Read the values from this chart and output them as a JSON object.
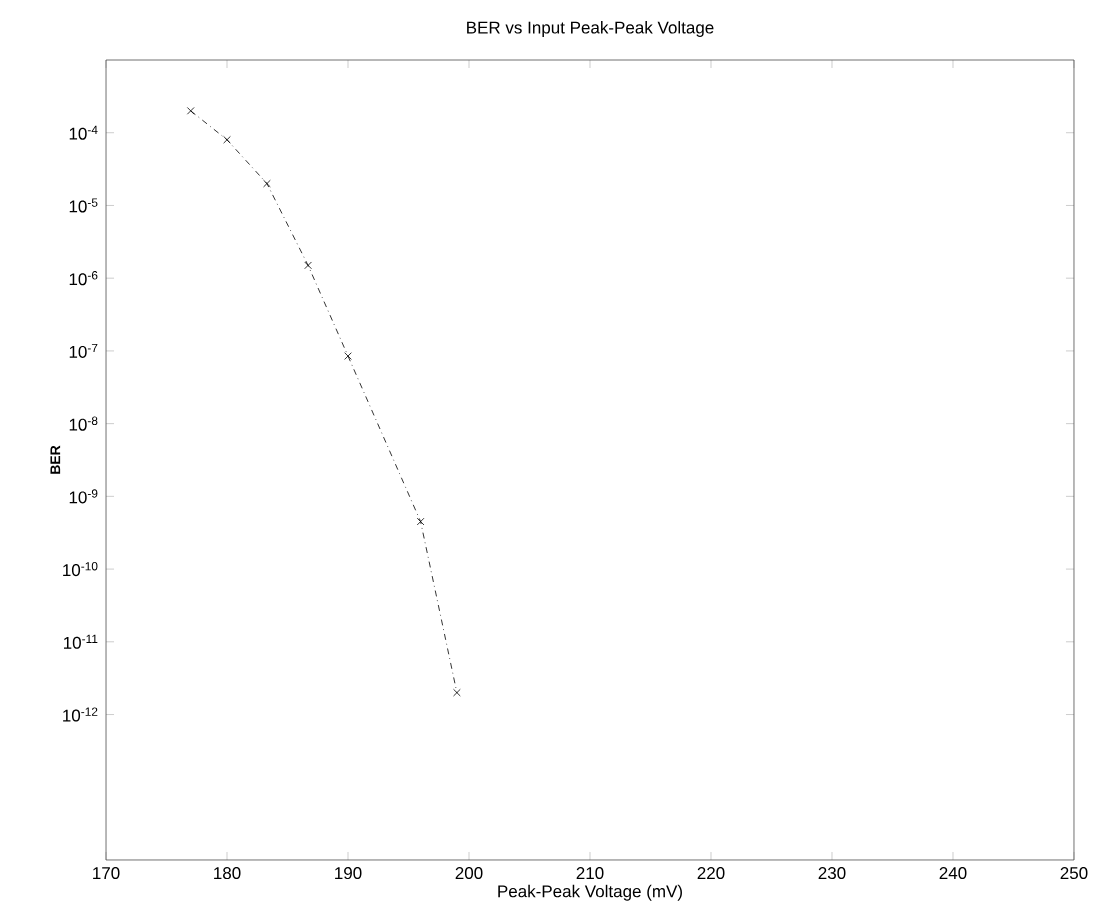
{
  "chart_data": {
    "type": "line",
    "title": "BER vs Input Peak-Peak Voltage",
    "xlabel": "Peak-Peak Voltage (mV)",
    "ylabel": "BER",
    "log": "y",
    "xlim": [
      170,
      250
    ],
    "xticks": [
      170,
      180,
      190,
      200,
      210,
      220,
      230,
      240,
      250
    ],
    "ylim": [
      1e-14,
      0.001
    ],
    "yticks": [
      {
        "value": 1e-12,
        "label": "10$^{-12}$"
      },
      {
        "value": 1e-11,
        "label": "10$^{-11}$"
      },
      {
        "value": 1e-10,
        "label": "10$^{-10}$"
      },
      {
        "value": 1e-09,
        "label": "10$^{-9}$"
      },
      {
        "value": 1e-08,
        "label": "10$^{-8}$"
      },
      {
        "value": 1e-07,
        "label": "10$^{-7}$"
      },
      {
        "value": 1e-06,
        "label": "10$^{-6}$"
      },
      {
        "value": 1e-05,
        "label": "10$^{-5}$"
      },
      {
        "value": 0.0001,
        "label": "10$^{-4}$"
      }
    ],
    "x": [
      177,
      180,
      183.3,
      186.7,
      190,
      196,
      199
    ],
    "series": [
      {
        "color": "#000000",
        "values": [
          0.0002,
          8e-05,
          2e-05,
          1.5e-06,
          8.5e-08,
          4.5e-10,
          2e-12
        ]
      }
    ],
    "marker": "cross",
    "line_style": "dashdot"
  }
}
